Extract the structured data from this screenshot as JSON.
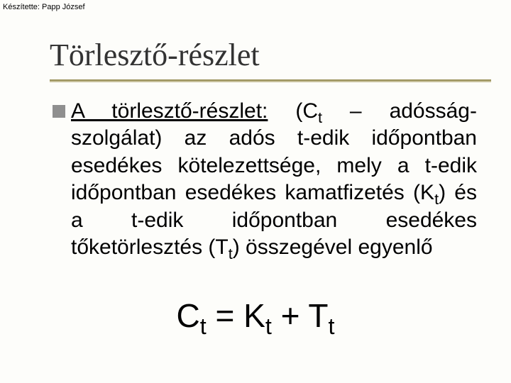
{
  "author_line": "Készítette: Papp József",
  "title": "Törlesztő-részlet",
  "body": {
    "lead_underlined": "A törlesztő-részlet:",
    "seg1_before_sub": " (C",
    "seg1_sub": "t",
    "seg2": " – adósság-szolgálat) az adós t-edik időpontban esedékes kötelezettsége, mely a t-edik időpontban esedékes kamatfizetés (K",
    "seg2_sub": "t",
    "seg3": ") és a t-edik időpontban esedékes tőketörlesztés (T",
    "seg3_sub": "t",
    "seg4": ") összegével egyenlő"
  },
  "equation": {
    "c": "C",
    "c_sub": "t",
    "eq": " = ",
    "k": "K",
    "k_sub": "t",
    "plus": " + ",
    "t": "T",
    "t_sub": "t"
  },
  "colors": {
    "background": "#fdfdfa",
    "title_text": "#333333",
    "rule": "#9a915a",
    "rule_shadow": "#c7c19c",
    "bullet": "#8f8f8f",
    "body_text": "#000000"
  },
  "fonts": {
    "title_family": "Times New Roman",
    "title_size_pt": 33,
    "body_family": "Arial",
    "body_size_pt": 22,
    "equation_size_pt": 34,
    "author_size_pt": 8
  }
}
